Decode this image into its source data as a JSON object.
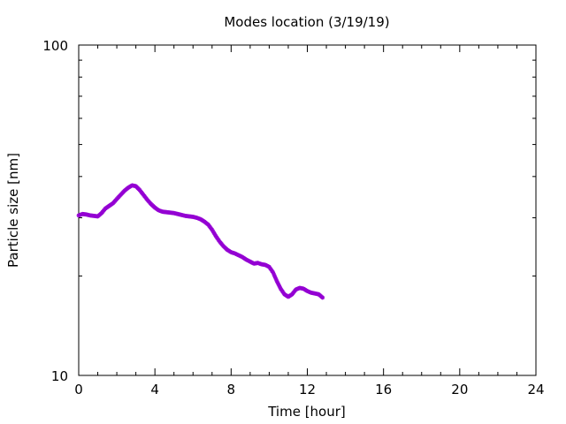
{
  "chart_data": {
    "type": "scatter",
    "title": "Modes location (3/19/19)",
    "xlabel": "Time [hour]",
    "ylabel": "Particle size [nm]",
    "xlim": [
      0,
      24
    ],
    "ylim": [
      10,
      100
    ],
    "yscale": "log",
    "x_ticks": [
      0,
      4,
      8,
      12,
      16,
      20,
      24
    ],
    "x_tick_labels": [
      "0",
      "4",
      "8",
      "12",
      "16",
      "20",
      "24"
    ],
    "y_tick_labels": [
      "10",
      "100"
    ],
    "y_major_ticks": [
      10,
      100
    ],
    "y_minor_ticks": [
      20,
      30,
      40,
      50,
      60,
      70,
      80,
      90
    ],
    "grid": false,
    "legend": "none",
    "marker_color": "#9400d3",
    "series": [
      {
        "x": [
          0.0,
          0.2,
          0.4,
          0.6,
          0.8,
          1.0,
          1.2,
          1.4,
          1.6,
          1.8,
          2.0,
          2.2,
          2.4,
          2.6,
          2.8,
          3.0,
          3.2,
          3.4,
          3.6,
          3.8,
          4.0,
          4.2,
          4.4,
          4.6,
          4.8,
          5.0,
          5.2,
          5.4,
          5.6,
          5.8,
          6.0,
          6.2,
          6.4,
          6.6,
          6.8,
          7.0,
          7.2,
          7.4,
          7.6,
          7.8,
          8.0,
          8.2,
          8.4,
          8.6,
          8.8,
          9.0,
          9.2,
          9.4,
          9.6,
          9.8,
          10.0,
          10.2,
          10.4,
          10.6,
          10.8,
          11.0,
          11.2,
          11.4,
          11.6,
          11.8,
          12.0,
          12.2,
          12.4,
          12.6,
          12.8
        ],
        "y": [
          30.5,
          30.8,
          30.7,
          30.5,
          30.4,
          30.3,
          31.0,
          32.0,
          32.6,
          33.2,
          34.2,
          35.2,
          36.2,
          37.0,
          37.6,
          37.4,
          36.4,
          35.2,
          34.0,
          33.0,
          32.2,
          31.6,
          31.3,
          31.2,
          31.1,
          31.0,
          30.8,
          30.6,
          30.4,
          30.3,
          30.2,
          30.0,
          29.7,
          29.2,
          28.6,
          27.6,
          26.4,
          25.4,
          24.6,
          24.0,
          23.6,
          23.4,
          23.1,
          22.8,
          22.4,
          22.1,
          21.8,
          21.9,
          21.7,
          21.6,
          21.3,
          20.5,
          19.3,
          18.3,
          17.6,
          17.3,
          17.6,
          18.2,
          18.4,
          18.3,
          18.0,
          17.8,
          17.7,
          17.6,
          17.2
        ]
      }
    ]
  }
}
